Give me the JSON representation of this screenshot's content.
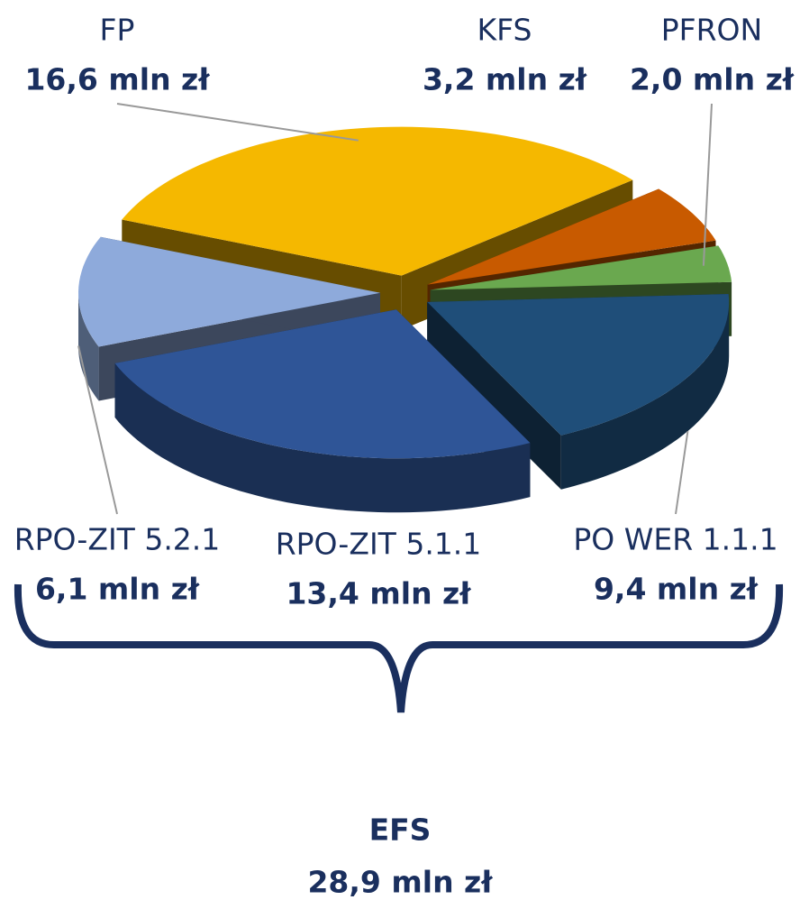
{
  "chart_data": {
    "type": "pie",
    "categories": [
      "KFS",
      "PFRON",
      "PO WER 1.1.1",
      "RPO-ZIT 5.1.1",
      "RPO-ZIT 5.2.1",
      "FP"
    ],
    "values": [
      3.2,
      2.0,
      9.4,
      13.4,
      6.1,
      16.6
    ],
    "value_labels": [
      "3,2 mln zł",
      "2,0 mln zł",
      "9,4 mln zł",
      "13,4 mln zł",
      "6,1 mln zł",
      "16,6 mln zł"
    ],
    "colors": [
      "#c85a00",
      "#6aa84f",
      "#1f4e79",
      "#2f5597",
      "#8eaadb",
      "#f5b800"
    ],
    "annotation": {
      "title": "EFS",
      "value": "28,9 mln zł"
    }
  }
}
